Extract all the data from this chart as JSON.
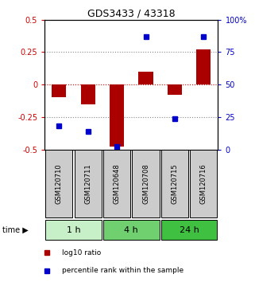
{
  "title": "GDS3433 / 43318",
  "samples": [
    "GSM120710",
    "GSM120711",
    "GSM120648",
    "GSM120708",
    "GSM120715",
    "GSM120716"
  ],
  "log10_ratio": [
    -0.1,
    -0.15,
    -0.48,
    0.1,
    -0.08,
    0.27
  ],
  "percentile_rank": [
    18,
    14,
    2,
    87,
    24,
    87
  ],
  "time_groups": [
    {
      "label": "1 h",
      "samples": [
        0,
        1
      ],
      "color": "#c8f0c8"
    },
    {
      "label": "4 h",
      "samples": [
        2,
        3
      ],
      "color": "#70d070"
    },
    {
      "label": "24 h",
      "samples": [
        4,
        5
      ],
      "color": "#40c040"
    }
  ],
  "bar_color": "#aa0000",
  "dot_color": "#0000cc",
  "ylim_left": [
    -0.5,
    0.5
  ],
  "ylim_right": [
    0,
    100
  ],
  "yticks_left": [
    -0.5,
    -0.25,
    0,
    0.25,
    0.5
  ],
  "yticks_right": [
    0,
    25,
    50,
    75,
    100
  ],
  "hlines": [
    0.25,
    0,
    -0.25
  ],
  "hline_colors": [
    "#888888",
    "#cc0000",
    "#888888"
  ],
  "hline_styles": [
    "dotted",
    "dotted",
    "dotted"
  ],
  "background_color": "#ffffff",
  "plot_bg": "#ffffff",
  "sample_label_bg": "#cccccc",
  "bar_width": 0.5,
  "legend_items": [
    {
      "label": "log10 ratio",
      "color": "#aa0000"
    },
    {
      "label": "percentile rank within the sample",
      "color": "#0000cc"
    }
  ]
}
